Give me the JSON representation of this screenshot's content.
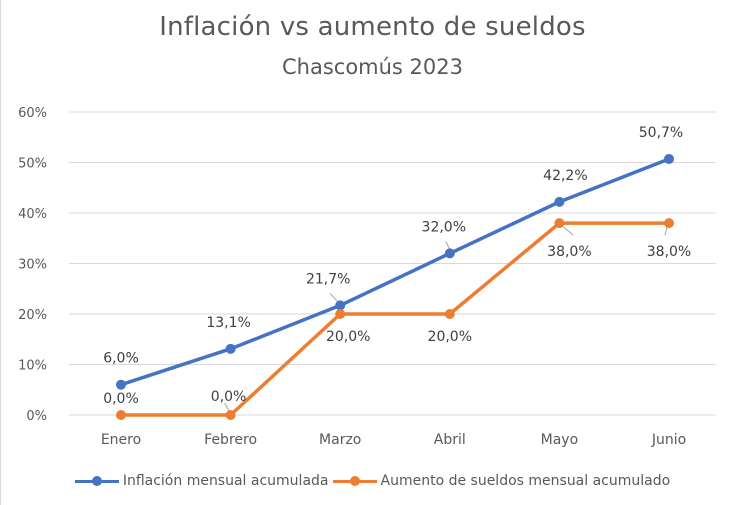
{
  "chart_data": {
    "type": "line",
    "title": "Inflación vs aumento de sueldos",
    "subtitle": "Chascomús 2023",
    "xlabel": "",
    "ylabel": "",
    "categories": [
      "Enero",
      "Febrero",
      "Marzo",
      "Abril",
      "Mayo",
      "Junio"
    ],
    "ylim": [
      0,
      60
    ],
    "yticks": [
      0,
      10,
      20,
      30,
      40,
      50,
      60
    ],
    "ytick_labels": [
      "0%",
      "10%",
      "20%",
      "30%",
      "40%",
      "50%",
      "60%"
    ],
    "grid": true,
    "legend_position": "bottom",
    "series": [
      {
        "name": "Inflación mensual acumulada",
        "color": "#4472C4",
        "values": [
          6.0,
          13.1,
          21.7,
          32.0,
          42.2,
          50.7
        ],
        "labels": [
          "6,0%",
          "13,1%",
          "21,7%",
          "32,0%",
          "42,2%",
          "50,7%"
        ]
      },
      {
        "name": "Aumento de sueldos mensual acumulado",
        "color": "#ED7D31",
        "values": [
          0.0,
          0.0,
          20.0,
          20.0,
          38.0,
          38.0
        ],
        "labels": [
          "0,0%",
          "0,0%",
          "20,0%",
          "20,0%",
          "38,0%",
          "38,0%"
        ]
      }
    ]
  }
}
